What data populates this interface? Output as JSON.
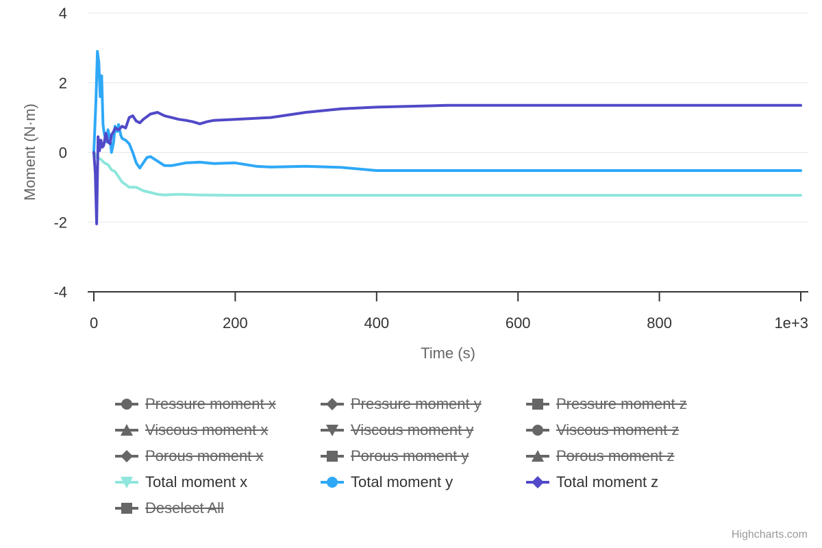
{
  "chart_data": {
    "type": "line",
    "xlabel": "Time (s)",
    "ylabel": "Moment (N·m)",
    "xlim": [
      0,
      1000
    ],
    "ylim": [
      -4,
      4
    ],
    "x_ticks": [
      "0",
      "200",
      "400",
      "600",
      "800",
      "1e+3"
    ],
    "y_ticks": [
      "4",
      "2",
      "0",
      "-2",
      "-4"
    ],
    "grid": "horizontal",
    "legend_position": "bottom",
    "series": [
      {
        "name": "Total moment x",
        "color": "#8ee6dc",
        "x": [
          0,
          5,
          10,
          15,
          20,
          25,
          30,
          35,
          40,
          50,
          60,
          70,
          80,
          90,
          100,
          120,
          150,
          200,
          300,
          400,
          500,
          600,
          700,
          800,
          900,
          1000
        ],
        "y": [
          0,
          -0.15,
          -0.2,
          -0.3,
          -0.35,
          -0.5,
          -0.55,
          -0.7,
          -0.85,
          -1.0,
          -1.0,
          -1.1,
          -1.15,
          -1.2,
          -1.22,
          -1.2,
          -1.22,
          -1.23,
          -1.23,
          -1.23,
          -1.23,
          -1.23,
          -1.23,
          -1.23,
          -1.23,
          -1.23
        ]
      },
      {
        "name": "Total moment y",
        "color": "#2ea8f7",
        "x": [
          0,
          3,
          5,
          7,
          9,
          11,
          13,
          15,
          18,
          20,
          23,
          25,
          28,
          30,
          33,
          35,
          38,
          40,
          45,
          50,
          55,
          60,
          65,
          70,
          75,
          80,
          90,
          100,
          110,
          130,
          150,
          170,
          200,
          230,
          250,
          300,
          350,
          400,
          500,
          600,
          700,
          800,
          900,
          1000
        ],
        "y": [
          0,
          1.5,
          2.9,
          2.6,
          1.6,
          2.2,
          0.8,
          0.5,
          0.3,
          0.65,
          0.4,
          0.0,
          0.3,
          0.75,
          0.6,
          0.8,
          0.5,
          0.4,
          0.35,
          0.25,
          0.0,
          -0.3,
          -0.45,
          -0.3,
          -0.15,
          -0.12,
          -0.25,
          -0.38,
          -0.38,
          -0.3,
          -0.28,
          -0.32,
          -0.3,
          -0.4,
          -0.42,
          -0.4,
          -0.43,
          -0.52,
          -0.52,
          -0.52,
          -0.52,
          -0.52,
          -0.52,
          -0.52
        ]
      },
      {
        "name": "Total moment z",
        "color": "#5149c7",
        "x": [
          0,
          2,
          4,
          6,
          8,
          10,
          12,
          14,
          17,
          20,
          23,
          25,
          28,
          30,
          35,
          40,
          45,
          50,
          55,
          60,
          65,
          70,
          80,
          90,
          100,
          110,
          120,
          130,
          140,
          150,
          160,
          170,
          200,
          250,
          300,
          350,
          400,
          500,
          600,
          700,
          800,
          900,
          1000
        ],
        "y": [
          0,
          -0.6,
          -2.05,
          0.45,
          0.05,
          0.35,
          0.15,
          0.2,
          0.55,
          0.3,
          0.25,
          0.5,
          0.6,
          0.7,
          0.65,
          0.75,
          0.7,
          1.0,
          1.05,
          0.9,
          0.85,
          0.95,
          1.1,
          1.15,
          1.05,
          1.0,
          0.95,
          0.92,
          0.88,
          0.82,
          0.88,
          0.92,
          0.95,
          1.0,
          1.15,
          1.25,
          1.3,
          1.35,
          1.35,
          1.35,
          1.35,
          1.35,
          1.35
        ]
      }
    ]
  },
  "legend": {
    "items": [
      {
        "label": "Pressure moment x",
        "visible": false,
        "symbol": "circle"
      },
      {
        "label": "Pressure moment y",
        "visible": false,
        "symbol": "diamond"
      },
      {
        "label": "Pressure moment z",
        "visible": false,
        "symbol": "square"
      },
      {
        "label": "Viscous moment x",
        "visible": false,
        "symbol": "triangle"
      },
      {
        "label": "Viscous moment y",
        "visible": false,
        "symbol": "triangle-down"
      },
      {
        "label": "Viscous moment z",
        "visible": false,
        "symbol": "circle"
      },
      {
        "label": "Porous moment x",
        "visible": false,
        "symbol": "diamond"
      },
      {
        "label": "Porous moment y",
        "visible": false,
        "symbol": "square"
      },
      {
        "label": "Porous moment z",
        "visible": false,
        "symbol": "triangle"
      },
      {
        "label": "Total moment x",
        "visible": true,
        "symbol": "triangle-down",
        "color": "#8ee6dc"
      },
      {
        "label": "Total moment y",
        "visible": true,
        "symbol": "circle",
        "color": "#2ea8f7"
      },
      {
        "label": "Total moment z",
        "visible": true,
        "symbol": "diamond",
        "color": "#5149c7"
      },
      {
        "label": "Deselect All",
        "visible": false,
        "symbol": "square"
      }
    ]
  },
  "credits": "Highcharts.com"
}
